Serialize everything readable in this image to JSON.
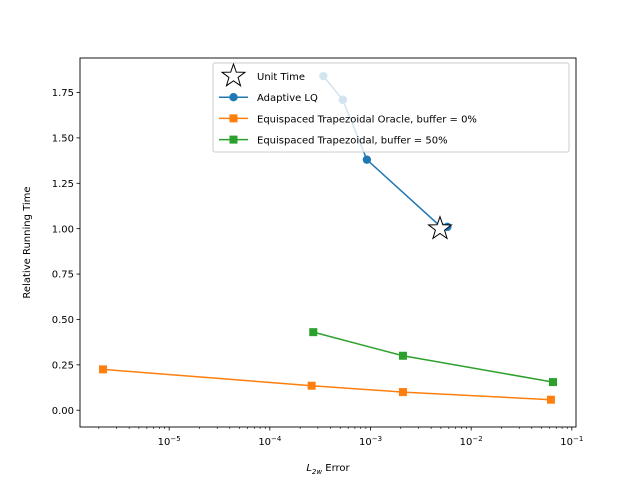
{
  "chart_data": {
    "type": "line",
    "xlabel_main": "L",
    "xlabel_sub": "2w",
    "xlabel_rest": " Error",
    "ylabel": "Relative Running Time",
    "xscale": "log",
    "xlim": [
      1.3e-06,
      0.11
    ],
    "ylim": [
      -0.0924,
      1.94
    ],
    "grid": false,
    "legend_location": "upper-center",
    "x_ticks": [
      {
        "value": 1e-05,
        "base": "10",
        "exp": "−5"
      },
      {
        "value": 0.0001,
        "base": "10",
        "exp": "−4"
      },
      {
        "value": 0.001,
        "base": "10",
        "exp": "−3"
      },
      {
        "value": 0.01,
        "base": "10",
        "exp": "−2"
      },
      {
        "value": 0.1,
        "base": "10",
        "exp": "−1"
      }
    ],
    "y_ticks": [
      {
        "value": 0.0,
        "label": "0.00"
      },
      {
        "value": 0.25,
        "label": "0.25"
      },
      {
        "value": 0.5,
        "label": "0.50"
      },
      {
        "value": 0.75,
        "label": "0.75"
      },
      {
        "value": 1.0,
        "label": "1.00"
      },
      {
        "value": 1.25,
        "label": "1.25"
      },
      {
        "value": 1.5,
        "label": "1.50"
      },
      {
        "value": 1.75,
        "label": "1.75"
      }
    ],
    "unit_time": {
      "name": "Unit Time",
      "x": 0.0049,
      "y": 1.0
    },
    "series": [
      {
        "name": "Adaptive LQ",
        "color": "#1f77b4",
        "marker": "circle",
        "x": [
          0.00034,
          0.00053,
          0.00092,
          0.005,
          0.0058
        ],
        "y": [
          1.84,
          1.71,
          1.38,
          1.01,
          1.01
        ]
      },
      {
        "name": "Equispaced Trapezoidal Oracle, buffer = 0%",
        "color": "#ff7f0e",
        "marker": "square",
        "x": [
          2.2e-06,
          0.00026,
          0.0021,
          0.062
        ],
        "y": [
          0.225,
          0.135,
          0.1,
          0.058
        ]
      },
      {
        "name": "Equispaced Trapezoidal, buffer = 50%",
        "color": "#2ca02c",
        "marker": "square",
        "x": [
          0.00027,
          0.0021,
          0.065
        ],
        "y": [
          0.43,
          0.3,
          0.155
        ]
      }
    ]
  }
}
